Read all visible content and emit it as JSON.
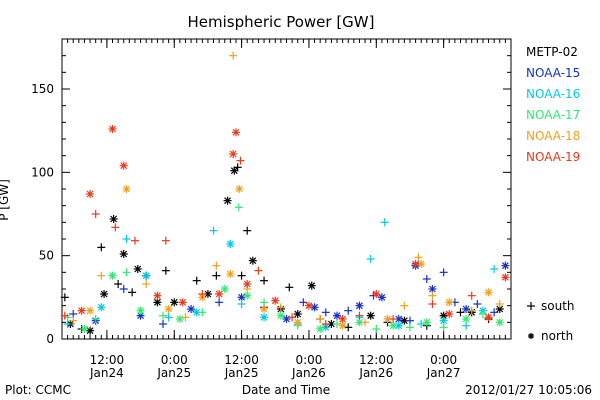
{
  "chart_data": {
    "type": "scatter",
    "title": "Hemispheric Power [GW]",
    "xlabel": "Date and Time",
    "ylabel": "P [GW]",
    "ylim": [
      0,
      180
    ],
    "y_ticks": [
      0,
      50,
      100,
      150
    ],
    "x_range_hours": [
      -20,
      60
    ],
    "x_ticks": [
      {
        "h": -12,
        "time": "12:00",
        "date": "Jan24"
      },
      {
        "h": 0,
        "time": "0:00",
        "date": "Jan25"
      },
      {
        "h": 12,
        "time": "12:00",
        "date": "Jan25"
      },
      {
        "h": 24,
        "time": "0:00",
        "date": "Jan26"
      },
      {
        "h": 36,
        "time": "12:00",
        "date": "Jan26"
      },
      {
        "h": 48,
        "time": "0:00",
        "date": "Jan27"
      }
    ],
    "x_minor_step_hours": 1,
    "grid": false,
    "legend_position": "right",
    "marker_legend": [
      {
        "symbol": "+",
        "label": "south"
      },
      {
        "symbol": "*",
        "label": "north"
      }
    ],
    "series": [
      {
        "name": "METP-02",
        "color": "#000000"
      },
      {
        "name": "NOAA-15",
        "color": "#1530c8"
      },
      {
        "name": "NOAA-16",
        "color": "#00c8e8"
      },
      {
        "name": "NOAA-17",
        "color": "#30e870"
      },
      {
        "name": "NOAA-18",
        "color": "#f0a020"
      },
      {
        "name": "NOAA-19",
        "color": "#e83a1a"
      }
    ],
    "points": [
      [
        0,
        "+",
        -19.5,
        25
      ],
      [
        0,
        "*",
        -18.5,
        9
      ],
      [
        0,
        "+",
        -16.5,
        6
      ],
      [
        0,
        "*",
        -15,
        5
      ],
      [
        0,
        "+",
        -13,
        55
      ],
      [
        0,
        "*",
        -12.5,
        27
      ],
      [
        0,
        "*",
        -10.8,
        72
      ],
      [
        0,
        "+",
        -10,
        33
      ],
      [
        0,
        "*",
        -9,
        51
      ],
      [
        0,
        "+",
        -7.5,
        28
      ],
      [
        0,
        "*",
        -6.5,
        42
      ],
      [
        0,
        "+",
        -5,
        38
      ],
      [
        0,
        "*",
        -3,
        22
      ],
      [
        0,
        "+",
        -1.5,
        41
      ],
      [
        0,
        "*",
        0,
        22
      ],
      [
        0,
        "+",
        4,
        35
      ],
      [
        0,
        "*",
        6,
        27
      ],
      [
        0,
        "+",
        7.5,
        38
      ],
      [
        0,
        "*",
        9.5,
        83
      ],
      [
        0,
        "*",
        10.7,
        101
      ],
      [
        0,
        "+",
        11.3,
        103
      ],
      [
        0,
        "+",
        12,
        38
      ],
      [
        0,
        "+",
        13,
        65
      ],
      [
        0,
        "*",
        14,
        47
      ],
      [
        0,
        "+",
        16,
        35
      ],
      [
        0,
        "*",
        19,
        18
      ],
      [
        0,
        "+",
        20.5,
        31
      ],
      [
        0,
        "*",
        22,
        15
      ],
      [
        0,
        "*",
        24.5,
        32
      ],
      [
        0,
        "+",
        26,
        12
      ],
      [
        0,
        "*",
        28,
        9
      ],
      [
        0,
        "+",
        31,
        7
      ],
      [
        0,
        "*",
        35,
        14
      ],
      [
        0,
        "+",
        38,
        10
      ],
      [
        0,
        "*",
        41,
        11
      ],
      [
        0,
        "+",
        45,
        8
      ],
      [
        0,
        "*",
        48,
        14
      ],
      [
        0,
        "+",
        51,
        16
      ],
      [
        0,
        "*",
        53,
        16
      ],
      [
        0,
        "+",
        56,
        12
      ],
      [
        0,
        "*",
        58,
        18
      ],
      [
        1,
        "+",
        -18,
        15
      ],
      [
        1,
        "*",
        -14,
        11
      ],
      [
        1,
        "+",
        -9,
        30
      ],
      [
        1,
        "*",
        -6,
        14
      ],
      [
        1,
        "+",
        -2,
        9
      ],
      [
        1,
        "*",
        3,
        18
      ],
      [
        1,
        "+",
        8,
        22
      ],
      [
        1,
        "*",
        12,
        25
      ],
      [
        1,
        "+",
        16,
        19
      ],
      [
        1,
        "*",
        20,
        12
      ],
      [
        1,
        "+",
        23,
        22
      ],
      [
        1,
        "*",
        25,
        19
      ],
      [
        1,
        "+",
        27,
        16
      ],
      [
        1,
        "*",
        29,
        14
      ],
      [
        1,
        "+",
        31,
        17
      ],
      [
        1,
        "*",
        33,
        20
      ],
      [
        1,
        "+",
        35.5,
        26
      ],
      [
        1,
        "*",
        37,
        25
      ],
      [
        1,
        "*",
        40,
        12
      ],
      [
        1,
        "+",
        42,
        11
      ],
      [
        1,
        "*",
        43,
        44
      ],
      [
        1,
        "+",
        45,
        36
      ],
      [
        1,
        "+",
        48,
        40
      ],
      [
        1,
        "*",
        46,
        30
      ],
      [
        1,
        "+",
        50,
        22
      ],
      [
        1,
        "*",
        52,
        18
      ],
      [
        1,
        "+",
        54,
        21
      ],
      [
        1,
        "+",
        57,
        16
      ],
      [
        1,
        "*",
        59,
        44
      ],
      [
        2,
        "+",
        -19,
        9
      ],
      [
        2,
        "*",
        -13,
        19
      ],
      [
        2,
        "+",
        -8.5,
        60
      ],
      [
        2,
        "*",
        -5,
        38
      ],
      [
        2,
        "+",
        -1,
        13
      ],
      [
        2,
        "*",
        4,
        16
      ],
      [
        2,
        "+",
        7,
        65
      ],
      [
        2,
        "*",
        10,
        57
      ],
      [
        2,
        "+",
        12,
        21
      ],
      [
        2,
        "*",
        16,
        13
      ],
      [
        2,
        "+",
        22,
        9
      ],
      [
        2,
        "*",
        27,
        7
      ],
      [
        2,
        "+",
        33,
        13
      ],
      [
        2,
        "+",
        35,
        48
      ],
      [
        2,
        "+",
        37.5,
        70
      ],
      [
        2,
        "*",
        40,
        8
      ],
      [
        2,
        "+",
        44,
        9
      ],
      [
        2,
        "*",
        48,
        11
      ],
      [
        2,
        "+",
        52,
        8
      ],
      [
        2,
        "*",
        55,
        17
      ],
      [
        2,
        "+",
        57,
        42
      ],
      [
        3,
        "+",
        -19,
        13
      ],
      [
        3,
        "*",
        -16,
        6
      ],
      [
        3,
        "+",
        -14,
        12
      ],
      [
        3,
        "*",
        -11,
        38
      ],
      [
        3,
        "+",
        -8.5,
        40
      ],
      [
        3,
        "*",
        -6,
        17
      ],
      [
        3,
        "+",
        -2,
        14
      ],
      [
        3,
        "*",
        1,
        12
      ],
      [
        3,
        "+",
        5,
        16
      ],
      [
        3,
        "*",
        9,
        30
      ],
      [
        3,
        "+",
        11.5,
        79
      ],
      [
        3,
        "*",
        13,
        26
      ],
      [
        3,
        "+",
        16,
        22
      ],
      [
        3,
        "*",
        19,
        14
      ],
      [
        3,
        "+",
        22,
        8
      ],
      [
        3,
        "*",
        26,
        6
      ],
      [
        3,
        "+",
        29,
        9
      ],
      [
        3,
        "*",
        33,
        10
      ],
      [
        3,
        "+",
        36,
        6
      ],
      [
        3,
        "*",
        39,
        8
      ],
      [
        3,
        "+",
        42,
        7
      ],
      [
        3,
        "*",
        45,
        10
      ],
      [
        3,
        "+",
        48,
        7
      ],
      [
        3,
        "*",
        52,
        12
      ],
      [
        3,
        "+",
        55,
        15
      ],
      [
        3,
        "*",
        58,
        10
      ],
      [
        4,
        "+",
        -18,
        11
      ],
      [
        4,
        "*",
        -15,
        17
      ],
      [
        4,
        "+",
        -13,
        38
      ],
      [
        4,
        "*",
        -8.5,
        90
      ],
      [
        4,
        "+",
        -5,
        33
      ],
      [
        4,
        "*",
        -1,
        18
      ],
      [
        4,
        "+",
        2,
        13
      ],
      [
        4,
        "*",
        5,
        25
      ],
      [
        4,
        "+",
        7.5,
        44
      ],
      [
        4,
        "*",
        10,
        39
      ],
      [
        4,
        "+",
        10.5,
        170
      ],
      [
        4,
        "*",
        11.6,
        90
      ],
      [
        4,
        "+",
        13,
        30
      ],
      [
        4,
        "*",
        16,
        18
      ],
      [
        4,
        "+",
        19,
        19
      ],
      [
        4,
        "*",
        22,
        10
      ],
      [
        4,
        "+",
        26,
        12
      ],
      [
        4,
        "*",
        30,
        8
      ],
      [
        4,
        "+",
        34,
        10
      ],
      [
        4,
        "*",
        38,
        12
      ],
      [
        4,
        "+",
        41,
        20
      ],
      [
        4,
        "+",
        43.5,
        49
      ],
      [
        4,
        "*",
        44,
        45
      ],
      [
        4,
        "+",
        46,
        26
      ],
      [
        4,
        "*",
        49,
        22
      ],
      [
        4,
        "+",
        53,
        17
      ],
      [
        4,
        "*",
        56,
        28
      ],
      [
        4,
        "+",
        58,
        21
      ],
      [
        5,
        "+",
        -19.5,
        14
      ],
      [
        5,
        "*",
        -16.5,
        17
      ],
      [
        5,
        "*",
        -15,
        87
      ],
      [
        5,
        "+",
        -14,
        75
      ],
      [
        5,
        "*",
        -11,
        126
      ],
      [
        5,
        "+",
        -10.5,
        67
      ],
      [
        5,
        "*",
        -9,
        104
      ],
      [
        5,
        "+",
        -7,
        59
      ],
      [
        5,
        "*",
        -3,
        26
      ],
      [
        5,
        "+",
        -1.5,
        59
      ],
      [
        5,
        "*",
        1.5,
        22
      ],
      [
        5,
        "+",
        5,
        27
      ],
      [
        5,
        "*",
        8,
        27
      ],
      [
        5,
        "*",
        10.5,
        111
      ],
      [
        5,
        "*",
        11,
        124
      ],
      [
        5,
        "+",
        11.8,
        107
      ],
      [
        5,
        "*",
        13,
        33
      ],
      [
        5,
        "+",
        15,
        41
      ],
      [
        5,
        "*",
        18,
        23
      ],
      [
        5,
        "+",
        21,
        13
      ],
      [
        5,
        "*",
        24,
        20
      ],
      [
        5,
        "+",
        27,
        9
      ],
      [
        5,
        "*",
        30,
        12
      ],
      [
        5,
        "+",
        33,
        14
      ],
      [
        5,
        "*",
        36,
        27
      ],
      [
        5,
        "+",
        39,
        12
      ],
      [
        5,
        "*",
        43,
        45
      ],
      [
        5,
        "+",
        46,
        21
      ],
      [
        5,
        "*",
        49,
        15
      ],
      [
        5,
        "+",
        53,
        26
      ],
      [
        5,
        "*",
        56,
        13
      ],
      [
        5,
        "*",
        59,
        37
      ]
    ]
  },
  "footer": {
    "plot_label": "Plot: CCMC",
    "timestamp": "2012/01/27 10:05:06"
  }
}
